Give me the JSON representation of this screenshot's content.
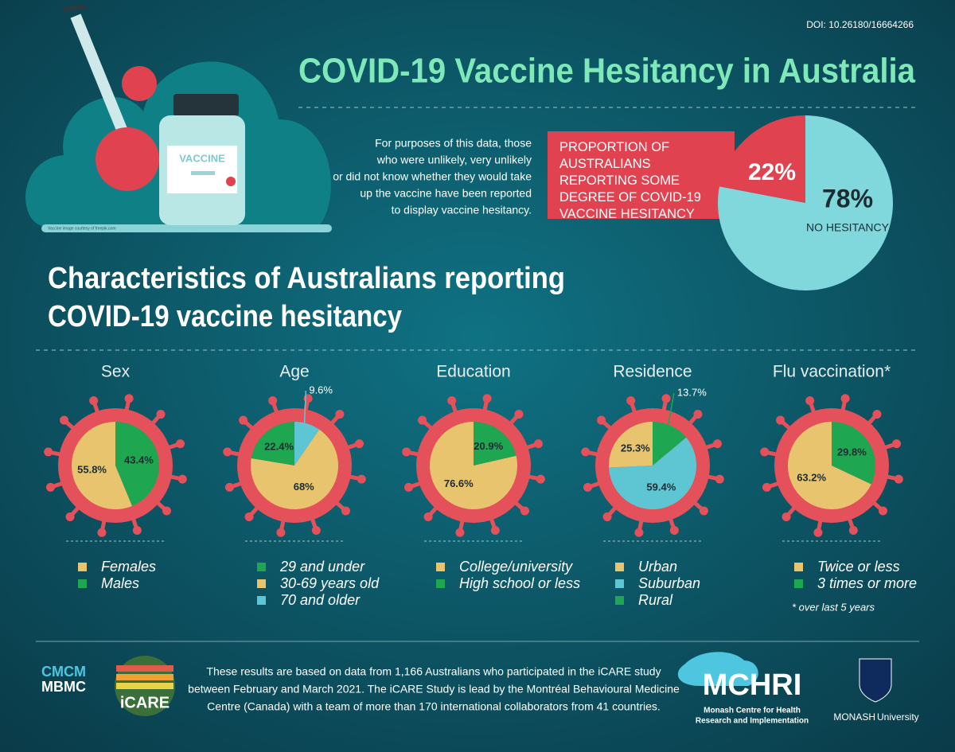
{
  "doi": "DOI: 10.26180/16664266",
  "title": "COVID-19 Vaccine Hesitancy in Australia",
  "illustration": {
    "vaccine_label": "VACCINE",
    "credit": "Vaccine image courtesy of freepik.com"
  },
  "note": [
    "For purposes of this data, those",
    "who were unlikely, very unlikely",
    "or did not know whether they would take",
    "up the vaccine have been reported",
    "to display vaccine hesitancy."
  ],
  "section_title": [
    "Characteristics of Australians reporting",
    "COVID-19 vaccine hesitancy"
  ],
  "chart_data": [
    {
      "type": "pie",
      "categories": [
        "PROPORTION OF AUSTRALIANS REPORTING SOME DEGREE OF COVID-19 VACCINE HESITANCY",
        "NO HESITANCY"
      ],
      "values": [
        22,
        78
      ],
      "value_labels": [
        "22%",
        "78%"
      ],
      "colors": [
        "#e0424f",
        "#80d7dc"
      ]
    },
    {
      "type": "pie",
      "title": "Sex",
      "categories": [
        "Females",
        "Males"
      ],
      "values": [
        55.8,
        43.4
      ],
      "value_labels": [
        "55.8%",
        "43.4%"
      ],
      "colors": [
        "#e9c46f",
        "#1fa651"
      ]
    },
    {
      "type": "pie",
      "title": "Age",
      "categories": [
        "29 and under",
        "30-69 years old",
        "70 and older"
      ],
      "values": [
        22.4,
        68,
        9.6
      ],
      "value_labels": [
        "22.4%",
        "68%",
        "9.6%"
      ],
      "colors": [
        "#1fa651",
        "#e9c46f",
        "#5ec6d2"
      ]
    },
    {
      "type": "pie",
      "title": "Education",
      "categories": [
        "College/university",
        "High school or less"
      ],
      "values": [
        76.6,
        20.9
      ],
      "value_labels": [
        "76.6%",
        "20.9%"
      ],
      "colors": [
        "#e9c46f",
        "#1fa651"
      ]
    },
    {
      "type": "pie",
      "title": "Residence",
      "categories": [
        "Urban",
        "Suburban",
        "Rural"
      ],
      "values": [
        25.3,
        59.4,
        13.7
      ],
      "value_labels": [
        "25.3%",
        "59.4%",
        "13.7%"
      ],
      "colors": [
        "#e9c46f",
        "#5ec6d2",
        "#1fa651"
      ]
    },
    {
      "type": "pie",
      "title": "Flu vaccination*",
      "categories": [
        "Twice or less",
        "3 times or more"
      ],
      "values": [
        63.2,
        29.8
      ],
      "value_labels": [
        "63.2%",
        "29.8%"
      ],
      "colors": [
        "#e9c46f",
        "#1fa651"
      ],
      "note": "* over last 5 years"
    }
  ],
  "footer": {
    "logo1": [
      "CMCM",
      "MBMC"
    ],
    "logo2": "iCARE",
    "text": [
      "These results are based on data from 1,166 Australians who participated in the iCARE study",
      "between February and March 2021. The iCARE Study is lead by the Montréal Behavioural Medicine",
      "Centre (Canada) with a team of more than 170 international collaborators from 41 countries."
    ],
    "logo3": "MCHRI",
    "logo3_sub": [
      "Monash Centre for Health",
      "Research and Implementation"
    ],
    "logo4": [
      "MONASH",
      "University"
    ]
  }
}
